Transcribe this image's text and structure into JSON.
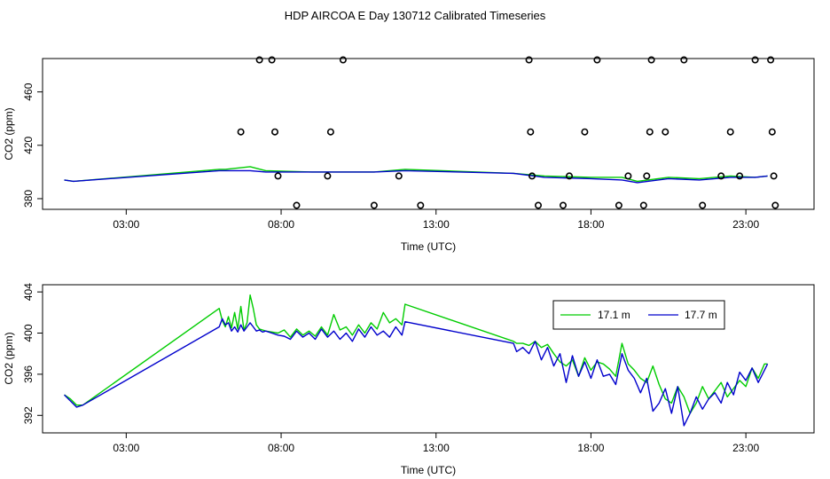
{
  "title": "HDP AIRCOA E  Day 130712  Calibrated Timeseries",
  "colors": {
    "series_17_1": "#00cc00",
    "series_17_7": "#0000cc",
    "calibration": "#000000"
  },
  "chart_data": [
    {
      "type": "line",
      "xlabel": "Time (UTC)",
      "ylabel": "CO2 (ppm)",
      "xlim": [
        0.3,
        25.2
      ],
      "ylim": [
        372,
        485
      ],
      "x_ticks": [
        3,
        8,
        13,
        18,
        23
      ],
      "x_tick_labels": [
        "03:00",
        "08:00",
        "13:00",
        "18:00",
        "23:00"
      ],
      "y_ticks": [
        380,
        420,
        460
      ],
      "y_tick_labels": [
        "380",
        "420",
        "460"
      ],
      "grid": false,
      "series": [
        {
          "color": "#00cc00",
          "x": [
            1.0,
            1.3,
            6.0,
            6.2,
            7.0,
            7.5,
            9.0,
            11.0,
            12.0,
            15.5,
            16.5,
            18.0,
            19.0,
            19.5,
            20.5,
            21.5,
            22.5,
            23.3,
            23.7
          ],
          "y": [
            394,
            393,
            402,
            402,
            404,
            401,
            400,
            400,
            402,
            399,
            397,
            396,
            396,
            393,
            396,
            395,
            397,
            396,
            397
          ]
        },
        {
          "color": "#0000cc",
          "x": [
            1.0,
            1.3,
            6.0,
            6.2,
            7.0,
            7.5,
            9.0,
            11.0,
            12.0,
            15.5,
            16.5,
            18.0,
            19.0,
            19.5,
            20.5,
            21.5,
            22.5,
            23.3,
            23.7
          ],
          "y": [
            394,
            393,
            401,
            401,
            401,
            400,
            400,
            400,
            401,
            399,
            396,
            395,
            394,
            392,
            395,
            394,
            396,
            396,
            397
          ]
        }
      ],
      "calibration_points": {
        "x": [
          6.7,
          7.3,
          7.7,
          7.8,
          7.9,
          8.5,
          9.5,
          9.6,
          10.0,
          11.0,
          11.8,
          12.5,
          16.0,
          16.05,
          16.1,
          16.3,
          17.1,
          17.3,
          17.8,
          18.2,
          18.9,
          19.2,
          19.7,
          19.8,
          19.9,
          19.95,
          20.4,
          21.0,
          21.6,
          22.2,
          22.5,
          22.8,
          23.3,
          23.8,
          23.85,
          23.9,
          23.95
        ],
        "y": [
          430,
          484,
          484,
          430,
          397,
          375,
          397,
          430,
          484,
          375,
          397,
          375,
          484,
          430,
          397,
          375,
          375,
          397,
          430,
          484,
          375,
          397,
          375,
          397,
          430,
          484,
          430,
          484,
          375,
          397,
          430,
          397,
          484,
          484,
          430,
          397,
          375
        ]
      }
    },
    {
      "type": "line",
      "xlabel": "Time (UTC)",
      "ylabel": "CO2 (ppm)",
      "xlim": [
        0.3,
        25.2
      ],
      "ylim": [
        390.3,
        404.7
      ],
      "x_ticks": [
        3,
        8,
        13,
        18,
        23
      ],
      "x_tick_labels": [
        "03:00",
        "08:00",
        "13:00",
        "18:00",
        "23:00"
      ],
      "y_ticks": [
        392,
        396,
        400,
        404
      ],
      "y_tick_labels": [
        "392",
        "396",
        "400",
        "404"
      ],
      "grid": false,
      "legend": {
        "placement": "top-right",
        "entries": [
          "17.1 m",
          "17.7 m"
        ]
      },
      "series": [
        {
          "name": "17.1 m",
          "color": "#00cc00",
          "x": [
            1.0,
            1.2,
            1.4,
            1.6,
            6.0,
            6.1,
            6.2,
            6.3,
            6.4,
            6.5,
            6.6,
            6.7,
            6.8,
            6.9,
            7.0,
            7.1,
            7.2,
            7.3,
            7.4,
            7.5,
            7.7,
            7.9,
            8.1,
            8.3,
            8.5,
            8.7,
            8.9,
            9.1,
            9.3,
            9.5,
            9.7,
            9.9,
            10.1,
            10.3,
            10.5,
            10.7,
            10.9,
            11.1,
            11.3,
            11.5,
            11.7,
            11.9,
            12.0,
            15.5,
            15.6,
            15.8,
            16.0,
            16.2,
            16.4,
            16.6,
            16.8,
            17.0,
            17.2,
            17.4,
            17.6,
            17.8,
            18.0,
            18.2,
            18.4,
            18.6,
            18.8,
            19.0,
            19.2,
            19.4,
            19.6,
            19.8,
            20.0,
            20.2,
            20.4,
            20.6,
            20.8,
            21.0,
            21.2,
            21.4,
            21.6,
            21.8,
            22.0,
            22.2,
            22.4,
            22.6,
            22.8,
            23.0,
            23.2,
            23.4,
            23.6,
            23.7
          ],
          "y": [
            394.0,
            393.6,
            393.0,
            393.0,
            402.4,
            401.2,
            400.6,
            401.6,
            400.5,
            402.0,
            400.4,
            402.6,
            400.3,
            401.0,
            403.7,
            402.4,
            400.8,
            400.4,
            400.3,
            400.2,
            400.1,
            400.0,
            400.3,
            399.6,
            400.4,
            399.8,
            400.2,
            399.7,
            400.6,
            399.8,
            401.8,
            400.3,
            400.6,
            399.8,
            400.8,
            400.0,
            401.0,
            400.4,
            402.0,
            401.0,
            401.4,
            400.8,
            402.8,
            399.2,
            399.0,
            399.0,
            398.8,
            399.2,
            398.6,
            398.9,
            398.0,
            397.2,
            396.8,
            397.4,
            395.8,
            397.6,
            396.4,
            397.2,
            397.0,
            396.5,
            395.8,
            399.0,
            397.0,
            396.4,
            395.6,
            395.2,
            396.8,
            395.0,
            393.6,
            393.2,
            394.8,
            393.8,
            392.2,
            393.2,
            394.8,
            393.6,
            394.4,
            395.2,
            393.8,
            394.6,
            395.4,
            394.8,
            396.6,
            395.6,
            397.0,
            397.0
          ]
        },
        {
          "name": "17.7 m",
          "color": "#0000cc",
          "x": [
            1.0,
            1.2,
            1.4,
            1.6,
            6.0,
            6.1,
            6.2,
            6.3,
            6.4,
            6.5,
            6.6,
            6.7,
            6.8,
            6.9,
            7.0,
            7.1,
            7.2,
            7.3,
            7.4,
            7.5,
            7.7,
            7.9,
            8.1,
            8.3,
            8.5,
            8.7,
            8.9,
            9.1,
            9.3,
            9.5,
            9.7,
            9.9,
            10.1,
            10.3,
            10.5,
            10.7,
            10.9,
            11.1,
            11.3,
            11.5,
            11.7,
            11.9,
            12.0,
            15.5,
            15.6,
            15.8,
            16.0,
            16.2,
            16.4,
            16.6,
            16.8,
            17.0,
            17.2,
            17.4,
            17.6,
            17.8,
            18.0,
            18.2,
            18.4,
            18.6,
            18.8,
            19.0,
            19.2,
            19.4,
            19.6,
            19.8,
            20.0,
            20.2,
            20.4,
            20.6,
            20.8,
            21.0,
            21.2,
            21.4,
            21.6,
            21.8,
            22.0,
            22.2,
            22.4,
            22.6,
            22.8,
            23.0,
            23.2,
            23.4,
            23.6,
            23.7
          ],
          "y": [
            394.0,
            393.4,
            392.8,
            393.0,
            400.6,
            401.4,
            400.8,
            401.0,
            400.2,
            400.6,
            400.1,
            400.8,
            400.2,
            400.6,
            401.0,
            400.6,
            400.2,
            400.3,
            400.1,
            400.2,
            400.0,
            399.8,
            399.7,
            399.4,
            400.2,
            399.6,
            400.0,
            399.4,
            400.4,
            399.6,
            400.2,
            399.4,
            400.0,
            399.2,
            400.4,
            399.6,
            400.6,
            399.8,
            400.2,
            399.6,
            400.6,
            399.8,
            401.1,
            399.0,
            398.2,
            398.6,
            398.0,
            399.2,
            397.4,
            398.6,
            396.8,
            398.0,
            395.2,
            397.8,
            395.8,
            397.2,
            395.6,
            397.4,
            395.8,
            396.0,
            395.0,
            398.0,
            396.4,
            395.6,
            394.2,
            395.6,
            392.4,
            393.2,
            394.6,
            392.2,
            394.8,
            391.0,
            392.2,
            393.8,
            392.6,
            393.6,
            394.2,
            393.2,
            395.2,
            394.0,
            396.2,
            395.4,
            396.6,
            395.2,
            396.4,
            397.0
          ]
        }
      ]
    }
  ]
}
